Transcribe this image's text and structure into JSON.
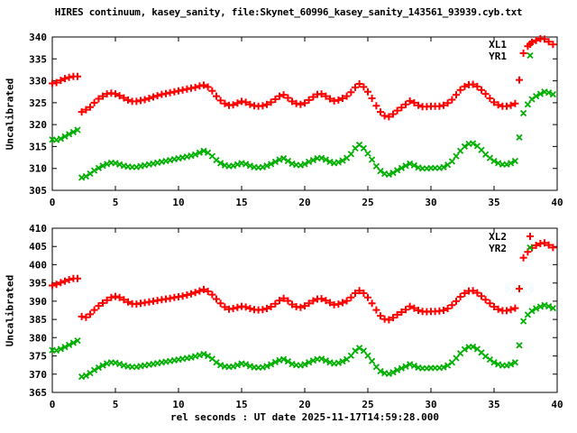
{
  "title": "HIRES continuum, kasey_sanity, file:Skynet_60996_kasey_sanity_143561_93939.cyb.txt",
  "colors": {
    "background": "#ffffff",
    "foreground": "#000000",
    "series_red": "#ff0000",
    "series_green": "#00b000"
  },
  "chart_data": [
    {
      "type": "scatter",
      "title": "",
      "ylabel": "Uncalibrated",
      "xlabel": "",
      "ylim": [
        305,
        340
      ],
      "xlim": [
        0,
        40
      ],
      "yticks": [
        305,
        310,
        315,
        320,
        325,
        330,
        335,
        340
      ],
      "xticks": [
        0,
        5,
        10,
        15,
        20,
        25,
        30,
        35,
        40
      ],
      "grid": false,
      "legend_position": "top-right-inside",
      "x": [
        0,
        0.33,
        0.67,
        1,
        1.33,
        1.67,
        2,
        2.33,
        2.67,
        3,
        3.33,
        3.67,
        4,
        4.33,
        4.67,
        5,
        5.33,
        5.67,
        6,
        6.33,
        6.67,
        7,
        7.33,
        7.67,
        8,
        8.33,
        8.67,
        9,
        9.33,
        9.67,
        10,
        10.33,
        10.67,
        11,
        11.33,
        11.67,
        12,
        12.33,
        12.67,
        13,
        13.33,
        13.67,
        14,
        14.33,
        14.67,
        15,
        15.33,
        15.67,
        16,
        16.33,
        16.67,
        17,
        17.33,
        17.67,
        18,
        18.33,
        18.67,
        19,
        19.33,
        19.67,
        20,
        20.33,
        20.67,
        21,
        21.33,
        21.67,
        22,
        22.33,
        22.67,
        23,
        23.33,
        23.67,
        24,
        24.33,
        24.67,
        25,
        25.33,
        25.67,
        26,
        26.33,
        26.67,
        27,
        27.33,
        27.67,
        28,
        28.33,
        28.67,
        29,
        29.33,
        29.67,
        30,
        30.33,
        30.67,
        31,
        31.33,
        31.67,
        32,
        32.33,
        32.67,
        33,
        33.33,
        33.67,
        34,
        34.33,
        34.67,
        35,
        35.33,
        35.67,
        36,
        36.33,
        36.67,
        37,
        37.33,
        37.67,
        38,
        38.33,
        38.67,
        39,
        39.33,
        39.67
      ],
      "series": [
        {
          "name": "XL1",
          "marker": "plus",
          "color": "#ff0000",
          "values": [
            329.4,
            329.6,
            330.1,
            330.5,
            330.8,
            331.0,
            331.0,
            322.9,
            323.4,
            324.0,
            325.0,
            325.9,
            326.5,
            327.0,
            327.2,
            327.0,
            326.6,
            326.1,
            325.6,
            325.3,
            325.3,
            325.5,
            325.7,
            326.0,
            326.3,
            326.6,
            326.9,
            327.1,
            327.3,
            327.5,
            327.7,
            327.9,
            328.1,
            328.3,
            328.5,
            328.8,
            329.0,
            328.6,
            327.7,
            326.5,
            325.5,
            324.8,
            324.4,
            324.5,
            324.9,
            325.3,
            325.1,
            324.6,
            324.3,
            324.2,
            324.3,
            324.6,
            325.1,
            325.8,
            326.5,
            326.8,
            326.1,
            325.3,
            324.8,
            324.6,
            324.9,
            325.6,
            326.3,
            326.9,
            327.0,
            326.5,
            325.9,
            325.4,
            325.6,
            326.0,
            326.5,
            327.4,
            328.5,
            329.3,
            328.6,
            327.5,
            326.0,
            324.3,
            322.9,
            322.0,
            321.8,
            322.4,
            323.2,
            323.9,
            324.6,
            325.4,
            325.0,
            324.4,
            324.1,
            324.1,
            324.2,
            324.2,
            324.2,
            324.4,
            324.9,
            325.7,
            326.8,
            327.9,
            328.7,
            329.1,
            329.2,
            328.7,
            327.9,
            327.0,
            326.0,
            325.1,
            324.5,
            324.2,
            324.2,
            324.4,
            324.8,
            330.2,
            336.3,
            337.9,
            338.8,
            339.2,
            339.6,
            339.5,
            338.9,
            338.3
          ]
        },
        {
          "name": "YR1",
          "marker": "cross",
          "color": "#00b000",
          "values": [
            316.6,
            316.5,
            316.8,
            317.3,
            317.8,
            318.3,
            318.8,
            307.9,
            308.2,
            308.8,
            309.5,
            310.1,
            310.6,
            311.0,
            311.3,
            311.2,
            310.9,
            310.6,
            310.4,
            310.3,
            310.3,
            310.5,
            310.7,
            310.9,
            311.1,
            311.3,
            311.5,
            311.7,
            311.9,
            312.1,
            312.3,
            312.5,
            312.7,
            312.9,
            313.2,
            313.6,
            314.0,
            313.6,
            312.8,
            311.9,
            311.2,
            310.7,
            310.5,
            310.6,
            310.9,
            311.2,
            311.0,
            310.6,
            310.3,
            310.2,
            310.3,
            310.6,
            311.0,
            311.5,
            312.0,
            312.3,
            311.7,
            311.1,
            310.8,
            310.7,
            311.0,
            311.5,
            311.9,
            312.3,
            312.4,
            312.0,
            311.5,
            311.2,
            311.4,
            311.8,
            312.4,
            313.3,
            314.6,
            315.4,
            314.6,
            313.4,
            312.0,
            310.5,
            309.4,
            308.8,
            308.6,
            309.0,
            309.6,
            310.1,
            310.6,
            311.1,
            310.7,
            310.2,
            310.0,
            310.0,
            310.1,
            310.1,
            310.1,
            310.3,
            310.8,
            311.6,
            312.8,
            314.0,
            315.0,
            315.6,
            315.7,
            315.1,
            314.2,
            313.2,
            312.4,
            311.7,
            311.2,
            310.9,
            310.9,
            311.2,
            311.7,
            317.1,
            322.6,
            324.6,
            325.8,
            326.5,
            327.0,
            327.5,
            327.3,
            326.9
          ]
        }
      ]
    },
    {
      "type": "scatter",
      "title": "",
      "ylabel": "Uncalibrated",
      "xlabel": "rel seconds : UT date 2025-11-17T14:59:28.000",
      "ylim": [
        365,
        410
      ],
      "xlim": [
        0,
        40
      ],
      "yticks": [
        365,
        370,
        375,
        380,
        385,
        390,
        395,
        400,
        405,
        410
      ],
      "xticks": [
        0,
        5,
        10,
        15,
        20,
        25,
        30,
        35,
        40
      ],
      "grid": false,
      "legend_position": "top-right-inside",
      "x": [
        0,
        0.33,
        0.67,
        1,
        1.33,
        1.67,
        2,
        2.33,
        2.67,
        3,
        3.33,
        3.67,
        4,
        4.33,
        4.67,
        5,
        5.33,
        5.67,
        6,
        6.33,
        6.67,
        7,
        7.33,
        7.67,
        8,
        8.33,
        8.67,
        9,
        9.33,
        9.67,
        10,
        10.33,
        10.67,
        11,
        11.33,
        11.67,
        12,
        12.33,
        12.67,
        13,
        13.33,
        13.67,
        14,
        14.33,
        14.67,
        15,
        15.33,
        15.67,
        16,
        16.33,
        16.67,
        17,
        17.33,
        17.67,
        18,
        18.33,
        18.67,
        19,
        19.33,
        19.67,
        20,
        20.33,
        20.67,
        21,
        21.33,
        21.67,
        22,
        22.33,
        22.67,
        23,
        23.33,
        23.67,
        24,
        24.33,
        24.67,
        25,
        25.33,
        25.67,
        26,
        26.33,
        26.67,
        27,
        27.33,
        27.67,
        28,
        28.33,
        28.67,
        29,
        29.33,
        29.67,
        30,
        30.33,
        30.67,
        31,
        31.33,
        31.67,
        32,
        32.33,
        32.67,
        33,
        33.33,
        33.67,
        34,
        34.33,
        34.67,
        35,
        35.33,
        35.67,
        36,
        36.33,
        36.67,
        37,
        37.33,
        37.67,
        38,
        38.33,
        38.67,
        39,
        39.33,
        39.67
      ],
      "series": [
        {
          "name": "XL2",
          "marker": "plus",
          "color": "#ff0000",
          "values": [
            394.3,
            394.6,
            395.1,
            395.5,
            395.9,
            396.2,
            396.2,
            385.8,
            385.6,
            386.4,
            387.6,
            388.7,
            389.5,
            390.3,
            391.0,
            391.3,
            391.0,
            390.4,
            389.8,
            389.3,
            389.2,
            389.4,
            389.6,
            389.8,
            390.0,
            390.2,
            390.4,
            390.6,
            390.8,
            391.0,
            391.2,
            391.4,
            391.7,
            392.0,
            392.4,
            392.8,
            393.2,
            392.7,
            391.8,
            390.6,
            389.4,
            388.4,
            387.8,
            388.0,
            388.3,
            388.6,
            388.4,
            388.0,
            387.7,
            387.6,
            387.7,
            388.0,
            388.5,
            389.3,
            390.2,
            390.8,
            390.1,
            389.1,
            388.5,
            388.3,
            388.7,
            389.4,
            390.1,
            390.6,
            390.7,
            390.2,
            389.6,
            389.0,
            389.2,
            389.6,
            390.1,
            391.0,
            392.2,
            392.9,
            392.2,
            391.0,
            389.4,
            387.6,
            386.0,
            385.1,
            384.9,
            385.5,
            386.3,
            387.0,
            387.7,
            388.6,
            388.1,
            387.5,
            387.2,
            387.1,
            387.2,
            387.2,
            387.3,
            387.5,
            388.0,
            388.9,
            390.0,
            391.2,
            392.2,
            392.8,
            392.9,
            392.3,
            391.4,
            390.4,
            389.4,
            388.5,
            387.8,
            387.4,
            387.4,
            387.7,
            388.1,
            393.4,
            401.9,
            403.5,
            404.6,
            405.3,
            405.8,
            406.0,
            405.4,
            404.7
          ]
        },
        {
          "name": "YR2",
          "marker": "cross",
          "color": "#00b000",
          "values": [
            376.6,
            376.5,
            376.9,
            377.4,
            378.0,
            378.6,
            379.2,
            369.3,
            369.6,
            370.3,
            371.1,
            371.8,
            372.4,
            372.9,
            373.2,
            373.1,
            372.8,
            372.4,
            372.1,
            372.0,
            372.0,
            372.2,
            372.4,
            372.6,
            372.8,
            373.0,
            373.2,
            373.4,
            373.6,
            373.8,
            374.0,
            374.2,
            374.4,
            374.6,
            374.9,
            375.2,
            375.5,
            375.0,
            374.2,
            373.2,
            372.5,
            372.1,
            372.0,
            372.1,
            372.5,
            372.9,
            372.7,
            372.2,
            371.9,
            371.8,
            371.9,
            372.2,
            372.7,
            373.3,
            373.8,
            374.1,
            373.5,
            372.8,
            372.5,
            372.4,
            372.7,
            373.2,
            373.7,
            374.1,
            374.2,
            373.7,
            373.2,
            372.9,
            373.1,
            373.5,
            374.1,
            375.1,
            376.4,
            377.2,
            376.4,
            375.1,
            373.6,
            372.0,
            370.8,
            370.3,
            370.1,
            370.5,
            371.1,
            371.6,
            372.1,
            372.7,
            372.3,
            371.8,
            371.6,
            371.6,
            371.7,
            371.7,
            371.7,
            371.9,
            372.4,
            373.2,
            374.4,
            375.7,
            376.8,
            377.4,
            377.5,
            376.9,
            375.9,
            374.9,
            374.0,
            373.2,
            372.7,
            372.4,
            372.4,
            372.7,
            373.2,
            377.9,
            384.5,
            386.3,
            387.3,
            388.0,
            388.5,
            388.9,
            388.6,
            388.1
          ]
        }
      ]
    }
  ]
}
